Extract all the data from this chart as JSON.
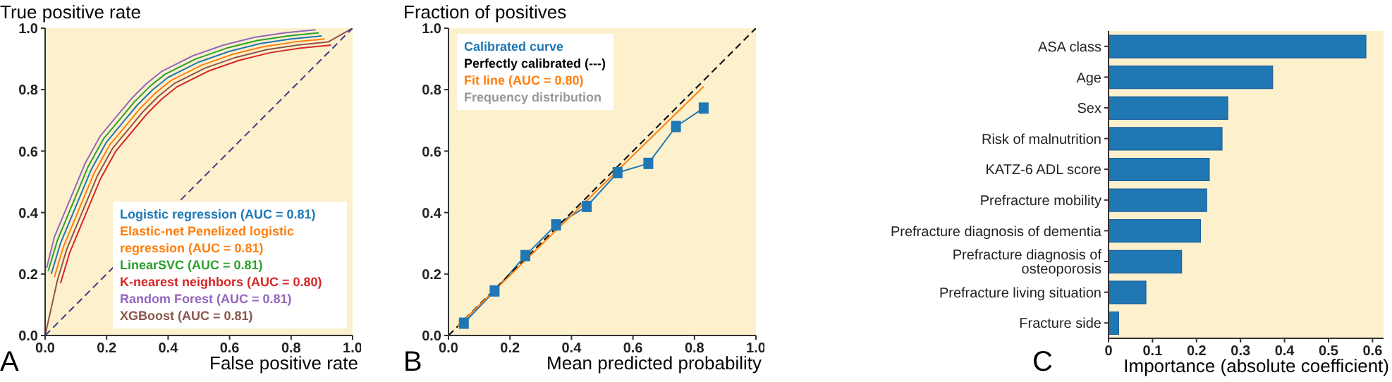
{
  "chart_data": [
    {
      "type": "line",
      "ylabel": "True positive rate",
      "xlabel": "False positive rate",
      "xlim": [
        0,
        1
      ],
      "ylim": [
        0,
        1
      ],
      "xticks": [
        {
          "value": 0,
          "label": "0.0"
        },
        {
          "value": 0.2,
          "label": "0.2"
        },
        {
          "value": 0.4,
          "label": "0.4"
        },
        {
          "value": 0.6,
          "label": "0.6"
        },
        {
          "value": 0.8,
          "label": "0.8"
        },
        {
          "value": 1,
          "label": "1.0"
        }
      ],
      "yticks": [
        {
          "value": 0,
          "label": "0.0"
        },
        {
          "value": 0.2,
          "label": "0.2"
        },
        {
          "value": 0.4,
          "label": "0.4"
        },
        {
          "value": 0.6,
          "label": "0.6"
        },
        {
          "value": 0.8,
          "label": "0.8"
        },
        {
          "value": 1,
          "label": "1.0"
        }
      ],
      "grid": false,
      "legend": "bottom right",
      "annotations": [
        "A"
      ],
      "series": [
        {
          "name": "Logistic regression (AUC = 0.81)",
          "color": "#1f77b4",
          "x": [
            0.02,
            0.05,
            0.1,
            0.15,
            0.2,
            0.25,
            0.3,
            0.35,
            0.4,
            0.5,
            0.6,
            0.7,
            0.8,
            0.9
          ],
          "values": [
            0.2,
            0.3,
            0.42,
            0.54,
            0.63,
            0.69,
            0.75,
            0.8,
            0.84,
            0.89,
            0.925,
            0.95,
            0.965,
            0.975
          ]
        },
        {
          "name": "Elastic-net Penelized logistic regression (AUC = 0.81)",
          "color": "#ff7f0e",
          "x": [
            0.03,
            0.06,
            0.11,
            0.16,
            0.21,
            0.26,
            0.31,
            0.36,
            0.41,
            0.51,
            0.61,
            0.71,
            0.81,
            0.91
          ],
          "values": [
            0.19,
            0.29,
            0.41,
            0.53,
            0.62,
            0.68,
            0.74,
            0.79,
            0.83,
            0.88,
            0.915,
            0.94,
            0.955,
            0.965
          ]
        },
        {
          "name": "LinearSVC (AUC = 0.81)",
          "color": "#2ca02c",
          "x": [
            0.01,
            0.04,
            0.09,
            0.14,
            0.19,
            0.24,
            0.29,
            0.34,
            0.39,
            0.49,
            0.59,
            0.69,
            0.79,
            0.89
          ],
          "values": [
            0.21,
            0.31,
            0.43,
            0.55,
            0.64,
            0.7,
            0.76,
            0.81,
            0.85,
            0.9,
            0.935,
            0.96,
            0.975,
            0.985
          ]
        },
        {
          "name": "K-nearest neighbors (AUC = 0.80)",
          "color": "#d62728",
          "x": [
            0.05,
            0.08,
            0.13,
            0.18,
            0.23,
            0.28,
            0.33,
            0.38,
            0.43,
            0.53,
            0.63,
            0.73,
            0.83,
            0.93
          ],
          "values": [
            0.17,
            0.27,
            0.39,
            0.51,
            0.6,
            0.66,
            0.72,
            0.77,
            0.81,
            0.86,
            0.895,
            0.92,
            0.935,
            0.945
          ]
        },
        {
          "name": "Random Forest (AUC = 0.81)",
          "color": "#9467bd",
          "x": [
            0.005,
            0.03,
            0.08,
            0.13,
            0.18,
            0.23,
            0.28,
            0.33,
            0.38,
            0.48,
            0.58,
            0.68,
            0.78,
            0.88
          ],
          "values": [
            0.22,
            0.32,
            0.44,
            0.56,
            0.65,
            0.71,
            0.77,
            0.82,
            0.86,
            0.91,
            0.945,
            0.97,
            0.985,
            0.995
          ]
        },
        {
          "name": "XGBoost (AUC = 0.81)",
          "color": "#8c564b",
          "x": [
            0,
            0.04,
            0.07,
            0.12,
            0.17,
            0.22,
            0.27,
            0.32,
            0.37,
            0.42,
            0.52,
            0.62,
            0.72,
            0.82,
            0.92,
            1
          ],
          "values": [
            0,
            0.18,
            0.28,
            0.4,
            0.52,
            0.61,
            0.67,
            0.73,
            0.78,
            0.82,
            0.87,
            0.905,
            0.93,
            0.945,
            0.955,
            1
          ]
        },
        {
          "color": "#3d3d8f",
          "line_style": "dashed",
          "x": [
            0,
            1
          ],
          "values": [
            0,
            1
          ]
        }
      ]
    },
    {
      "type": "line",
      "ylabel": "Fraction of positives",
      "xlabel": "Mean predicted probability",
      "xlim": [
        0,
        1
      ],
      "ylim": [
        0,
        1
      ],
      "xticks": [
        {
          "value": 0,
          "label": "0.0"
        },
        {
          "value": 0.2,
          "label": "0.2"
        },
        {
          "value": 0.4,
          "label": "0.4"
        },
        {
          "value": 0.6,
          "label": "0.6"
        },
        {
          "value": 0.8,
          "label": "0.8"
        },
        {
          "value": 1,
          "label": "1.0"
        }
      ],
      "yticks": [
        {
          "value": 0,
          "label": "0.0"
        },
        {
          "value": 0.2,
          "label": "0.2"
        },
        {
          "value": 0.4,
          "label": "0.4"
        },
        {
          "value": 0.6,
          "label": "0.6"
        },
        {
          "value": 0.8,
          "label": "0.8"
        },
        {
          "value": 1,
          "label": "1.0"
        }
      ],
      "grid": false,
      "legend": "top left",
      "annotations": [
        "B",
        "Frequency distribution"
      ],
      "series": [
        {
          "name": "Calibrated curve",
          "color": "#1f77b4",
          "marker": "square",
          "x": [
            0.05,
            0.15,
            0.25,
            0.35,
            0.45,
            0.55,
            0.65,
            0.74,
            0.83
          ],
          "values": [
            0.04,
            0.145,
            0.26,
            0.36,
            0.42,
            0.53,
            0.56,
            0.68,
            0.74
          ]
        },
        {
          "name": "Perfectly calibrated (---)",
          "color": "#000000",
          "line_style": "dashed",
          "x": [
            0,
            1
          ],
          "values": [
            0,
            1
          ]
        },
        {
          "name": "Fit line (AUC = 0.80)",
          "color": "#ff7f0e",
          "x": [
            0.03,
            0.83
          ],
          "values": [
            0.03,
            0.81
          ]
        }
      ]
    },
    {
      "type": "bar",
      "orientation": "horizontal",
      "xlabel": "Importance (absolute coefficient)",
      "color": "#1f77b4",
      "categories": [
        "ASA class",
        "Age",
        "Sex",
        "Risk of malnutrition",
        "KATZ-6 ADL score",
        "Prefracture mobility",
        "Prefracture diagnosis of dementia",
        "Prefracture diagnosis of osteoporosis",
        "Prefracture living situation",
        "Fracture side"
      ],
      "values": [
        0.585,
        0.373,
        0.271,
        0.258,
        0.229,
        0.223,
        0.209,
        0.166,
        0.085,
        0.023
      ],
      "xlim": [
        0,
        0.625
      ],
      "xticks": [
        0,
        0.1,
        0.2,
        0.3,
        0.4,
        0.5,
        0.6
      ],
      "grid": false,
      "annotations": [
        "C"
      ]
    }
  ]
}
